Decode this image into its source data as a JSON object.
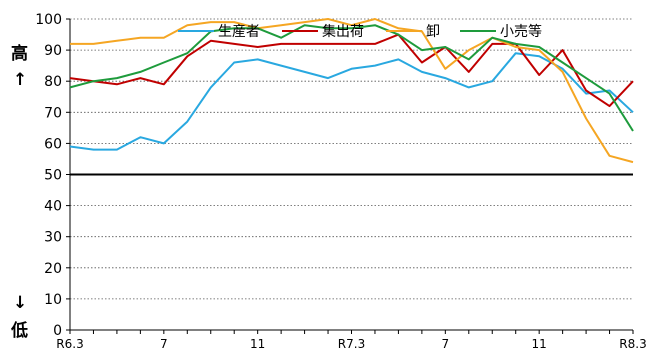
{
  "chart_data": {
    "type": "line",
    "ylim": [
      0,
      100
    ],
    "yticks": [
      0,
      10,
      20,
      30,
      40,
      50,
      60,
      70,
      80,
      90,
      100
    ],
    "x_tick_labels": [
      {
        "index": 0,
        "label": "R6.3"
      },
      {
        "index": 4,
        "label": "7"
      },
      {
        "index": 8,
        "label": "11"
      },
      {
        "index": 12,
        "label": "R7.3"
      },
      {
        "index": 16,
        "label": "7"
      },
      {
        "index": 20,
        "label": "11"
      },
      {
        "index": 24,
        "label": "R8.3"
      }
    ],
    "reference_line": 50,
    "side_labels": {
      "top": "高",
      "top_arrow": "↑",
      "bottom_arrow": "↓",
      "bottom": "低"
    },
    "grid": "dotted-horizontal",
    "legend_position": "top-right",
    "series": [
      {
        "name": "生産者",
        "color": "#29a8e0",
        "values": [
          59,
          58,
          58,
          62,
          60,
          67,
          78,
          86,
          87,
          85,
          83,
          81,
          84,
          85,
          87,
          83,
          81,
          78,
          80,
          89,
          88,
          84,
          76,
          77,
          70
        ]
      },
      {
        "name": "集出荷",
        "color": "#c00000",
        "values": [
          81,
          80,
          79,
          81,
          79,
          88,
          93,
          92,
          91,
          92,
          92,
          92,
          92,
          92,
          95,
          86,
          91,
          83,
          92,
          92,
          82,
          90,
          77,
          72,
          80
        ]
      },
      {
        "name": "卸",
        "color": "#f5a623",
        "values": [
          92,
          92,
          93,
          94,
          94,
          98,
          99,
          99,
          97,
          98,
          99,
          100,
          98,
          100,
          97,
          96,
          84,
          90,
          94,
          91,
          90,
          83,
          68,
          56,
          54
        ]
      },
      {
        "name": "小売等",
        "color": "#1e9b3c",
        "values": [
          78,
          80,
          81,
          83,
          86,
          89,
          96,
          97,
          97,
          94,
          98,
          97,
          97,
          98,
          95,
          90,
          91,
          87,
          94,
          92,
          91,
          86,
          81,
          76,
          64
        ]
      }
    ]
  }
}
